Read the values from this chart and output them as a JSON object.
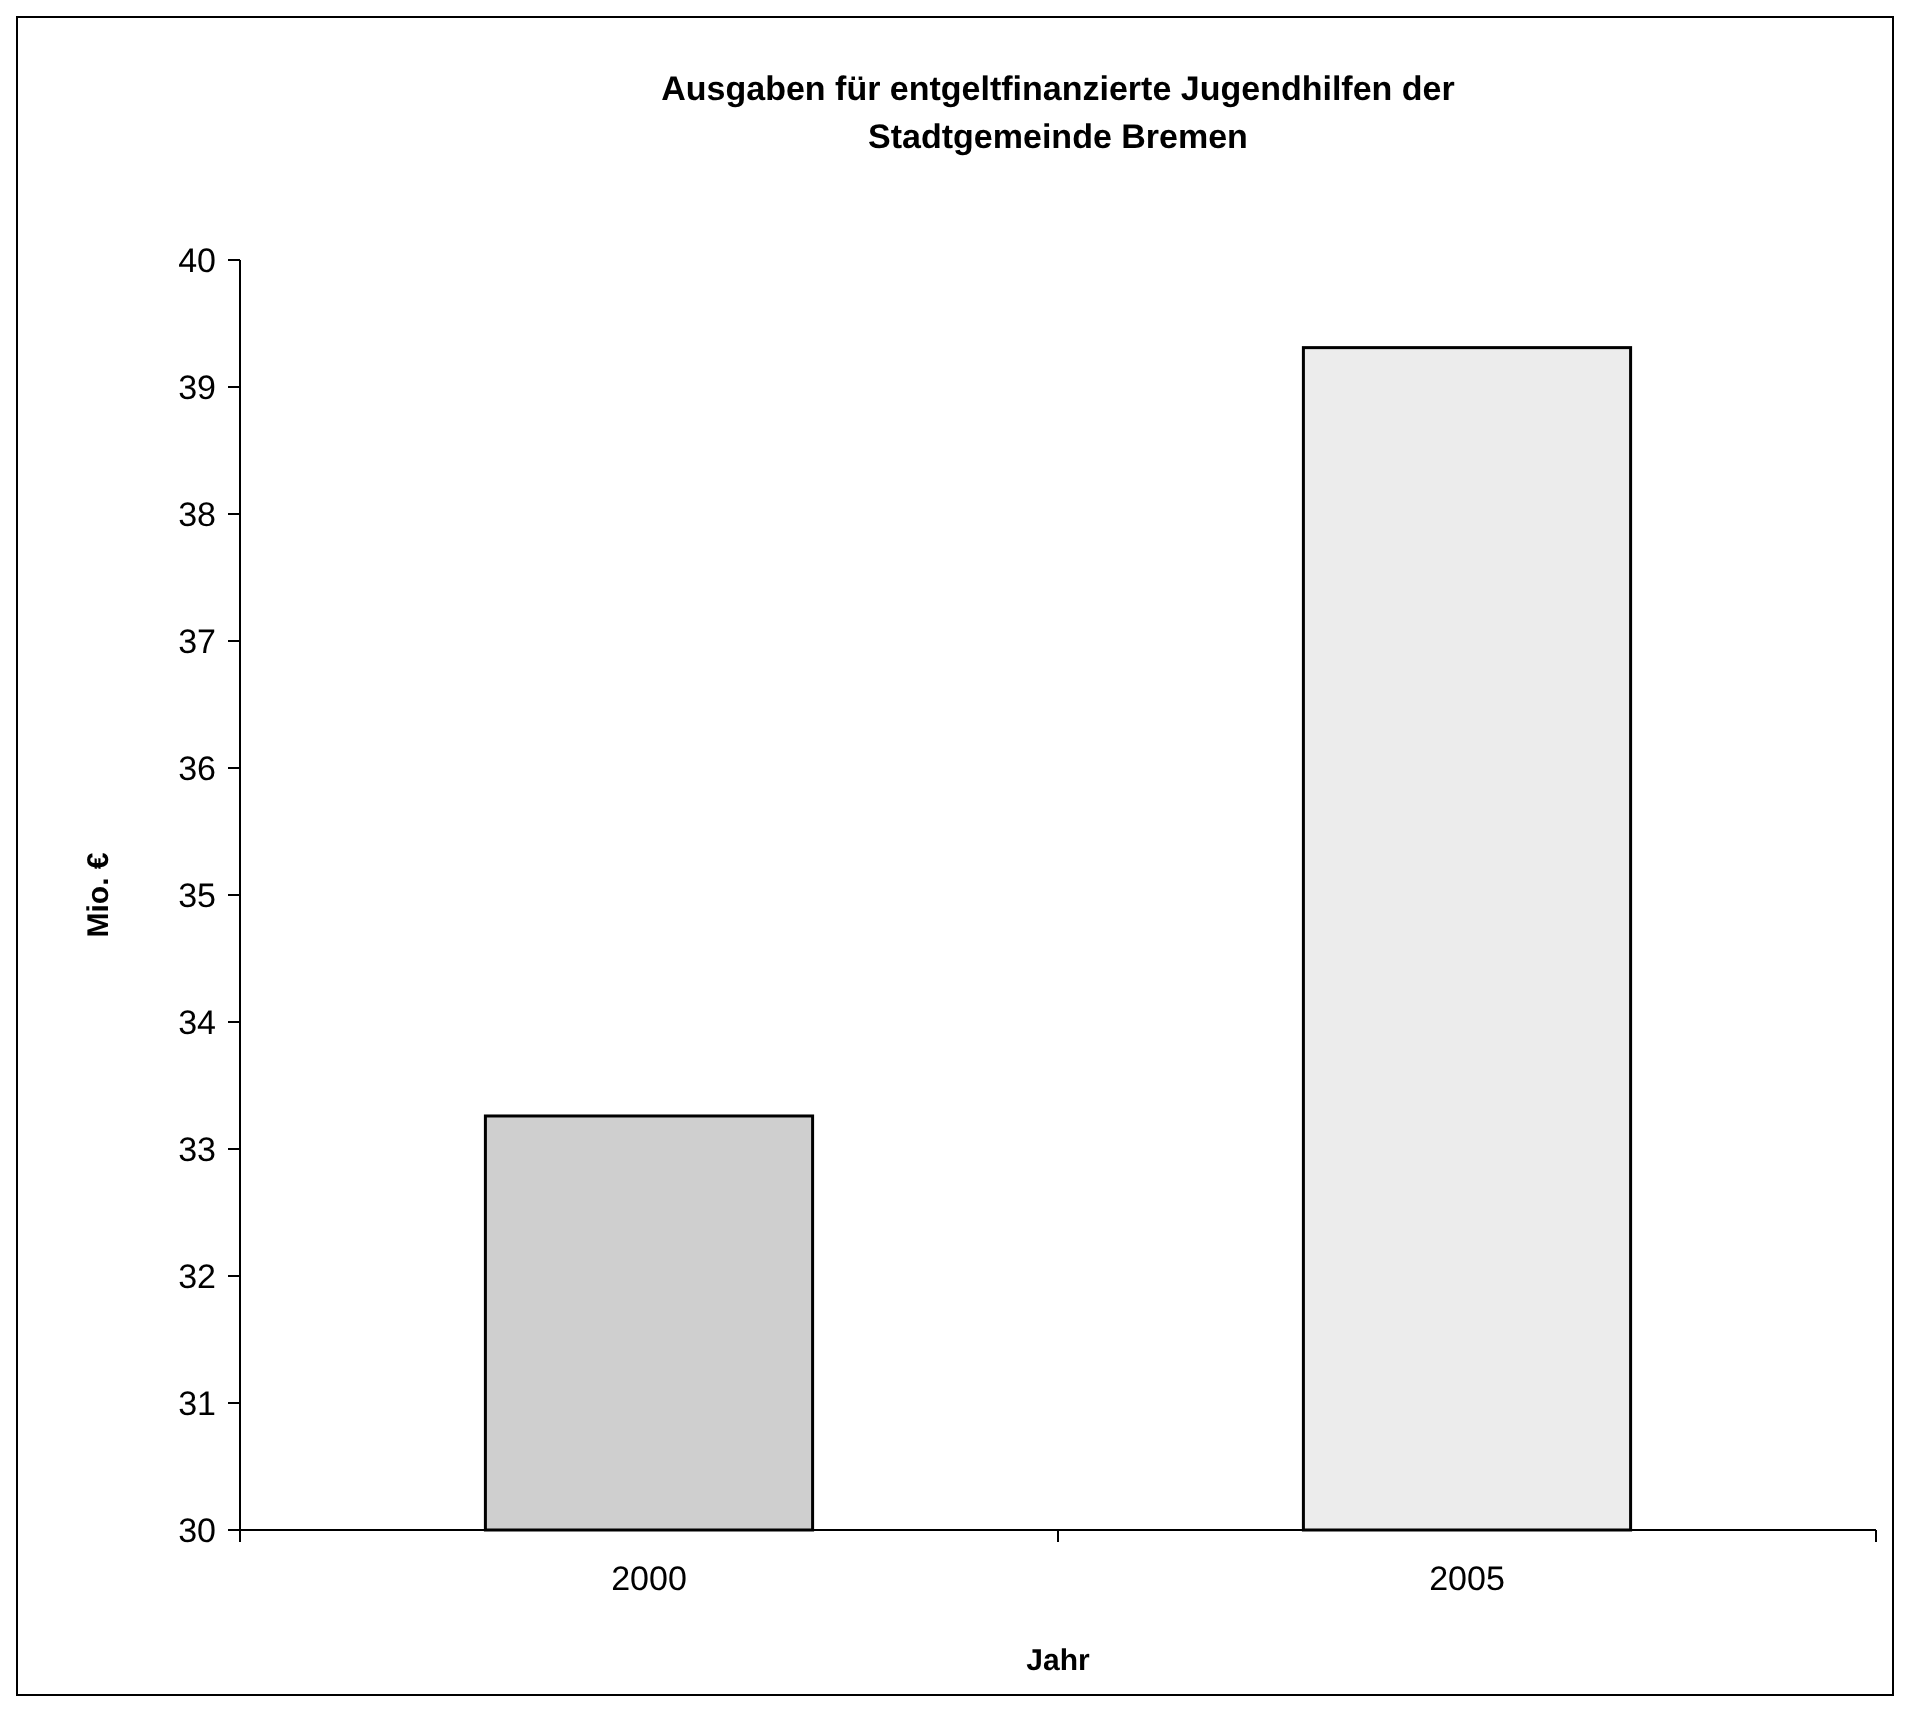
{
  "chart_data": {
    "type": "bar",
    "title": "Ausgaben für entgeltfinanzierte Jugendhilfen der Stadtgemeinde Bremen",
    "xlabel": "Jahr",
    "ylabel": "Mio. €",
    "categories": [
      "2000",
      "2005"
    ],
    "values": [
      33.26,
      39.31
    ],
    "colors": [
      "#cfcfcf",
      "#ececec"
    ],
    "ylim": [
      30,
      40
    ],
    "yticks": [
      30,
      31,
      32,
      33,
      34,
      35,
      36,
      37,
      38,
      39,
      40
    ],
    "grid": false
  }
}
